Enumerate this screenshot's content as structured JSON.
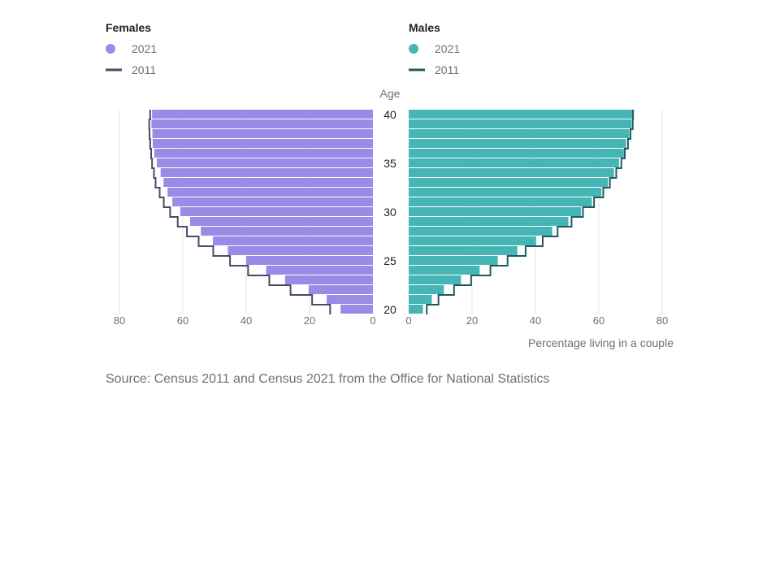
{
  "chart_data": {
    "type": "bar",
    "layout": "population-pyramid",
    "center_axis_label": "Age",
    "x_axis_title": "Percentage living in a couple",
    "xlim": [
      0,
      80
    ],
    "x_ticks": [
      0,
      20,
      40,
      60,
      80
    ],
    "age_tick_labels": [
      20,
      25,
      30,
      35,
      40
    ],
    "ages": [
      20,
      21,
      22,
      23,
      24,
      25,
      26,
      27,
      28,
      29,
      30,
      31,
      32,
      33,
      34,
      35,
      36,
      37,
      38,
      39,
      40
    ],
    "panels": [
      {
        "title": "Females",
        "side": "left",
        "bar_color": "#9b8ae6",
        "line_color": "#4a4a6a",
        "series": [
          {
            "name": "2021",
            "kind": "bar",
            "values": [
              10.2,
              14.6,
              20.3,
              27.7,
              33.7,
              40.0,
              45.8,
              50.5,
              54.3,
              57.7,
              60.8,
              63.3,
              64.8,
              66.1,
              67.0,
              68.2,
              69.0,
              69.5,
              69.6,
              69.9,
              69.7
            ]
          },
          {
            "name": "2011",
            "kind": "step-line",
            "values": [
              13.5,
              19.2,
              26.0,
              32.7,
              39.4,
              45.1,
              50.4,
              55.0,
              58.7,
              61.6,
              64.0,
              66.0,
              67.3,
              68.6,
              69.1,
              69.7,
              70.0,
              70.3,
              70.5,
              70.6,
              70.3
            ]
          }
        ]
      },
      {
        "title": "Males",
        "side": "right",
        "bar_color": "#46b5b5",
        "line_color": "#205a5f",
        "series": [
          {
            "name": "2021",
            "kind": "bar",
            "values": [
              4.5,
              7.3,
              11.1,
              16.5,
              22.4,
              28.1,
              34.3,
              40.2,
              45.3,
              50.4,
              54.4,
              57.8,
              60.8,
              62.9,
              64.8,
              66.4,
              67.9,
              68.6,
              69.6,
              70.3,
              70.8
            ]
          },
          {
            "name": "2011",
            "kind": "step-line",
            "values": [
              5.7,
              9.4,
              14.3,
              19.7,
              25.8,
              31.2,
              36.9,
              42.3,
              47.0,
              51.4,
              55.0,
              58.5,
              61.4,
              63.5,
              65.5,
              67.1,
              68.2,
              69.2,
              70.0,
              70.7,
              70.8
            ]
          }
        ]
      }
    ],
    "legend": {
      "placement": "top",
      "marker_2021": "circle",
      "marker_2011": "line"
    },
    "grid": true
  },
  "source_text": "Source: Census 2011 and Census 2021 from the Office for National Statistics"
}
